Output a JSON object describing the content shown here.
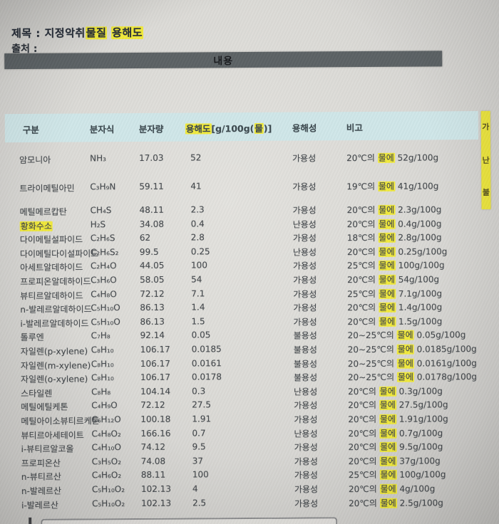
{
  "title": {
    "prefix": "제목 : 지정악취",
    "highlight_1": "물질",
    "highlight_2": "용해도"
  },
  "source": {
    "label": "출처 :"
  },
  "content_bar": {
    "label": "내용"
  },
  "table": {
    "headers": {
      "category": "구분",
      "formula": "분자식",
      "molecular_weight": "분자량",
      "solubility_highlight": "용해도",
      "solubility_open": "[g/100g(",
      "solubility_water": "물",
      "solubility_close": ")]",
      "solubility_class": "용해성",
      "remarks": "비고"
    },
    "water_word": "물에",
    "rows": [
      {
        "name": "암모니아",
        "name_highlighted": false,
        "formula": "NH₃",
        "mw": "17.03",
        "value": "52",
        "cls": "가용성",
        "remark_pre": "20℃의",
        "remark_post": "52g/100g"
      },
      {
        "name": "트라이메틸아민",
        "name_highlighted": false,
        "formula": "C₃H₉N",
        "mw": "59.11",
        "value": "41",
        "cls": "가용성",
        "remark_pre": "19℃의",
        "remark_post": "41g/100g"
      },
      {
        "name": "메틸메르캅탄",
        "name_highlighted": false,
        "formula": "CH₄S",
        "mw": "48.11",
        "value": "2.3",
        "cls": "가용성",
        "remark_pre": "20℃의",
        "remark_post": "2.3g/100g"
      },
      {
        "name": "황화수소",
        "name_highlighted": true,
        "formula": "H₂S",
        "mw": "34.08",
        "value": "0.4",
        "cls": "난용성",
        "remark_pre": "20℃의",
        "remark_post": "0.4g/100g"
      },
      {
        "name": "다이메틸설파이드",
        "name_highlighted": false,
        "formula": "C₂H₆S",
        "mw": "62",
        "value": "2.8",
        "cls": "가용성",
        "remark_pre": "18℃의",
        "remark_post": "2.8g/100g"
      },
      {
        "name": "다이메틸다이설파이드",
        "name_highlighted": false,
        "formula": "C₂H₆S₂",
        "mw": "99.5",
        "value": "0.25",
        "cls": "난용성",
        "remark_pre": "20℃의",
        "remark_post": "0.25g/100g"
      },
      {
        "name": "아세트알데하이드",
        "name_highlighted": false,
        "formula": "C₂H₄O",
        "mw": "44.05",
        "value": "100",
        "cls": "가용성",
        "remark_pre": "25℃의",
        "remark_post": "100g/100g"
      },
      {
        "name": "프로피온알데하이드",
        "name_highlighted": false,
        "formula": "C₃H₆O",
        "mw": "58.05",
        "value": "54",
        "cls": "가용성",
        "remark_pre": "20℃의",
        "remark_post": "54g/100g"
      },
      {
        "name": "뷰티르알데하이드",
        "name_highlighted": false,
        "formula": "C₄H₈O",
        "mw": "72.12",
        "value": "7.1",
        "cls": "가용성",
        "remark_pre": "25℃의",
        "remark_post": "7.1g/100g"
      },
      {
        "name": "n-발레르알데하이드",
        "name_highlighted": false,
        "formula": "C₅H₁₀O",
        "mw": "86.13",
        "value": "1.4",
        "cls": "가용성",
        "remark_pre": "20℃의",
        "remark_post": "1.4g/100g"
      },
      {
        "name": "i-발레르알데하이드",
        "name_highlighted": false,
        "formula": "C₅H₁₀O",
        "mw": "86.13",
        "value": "1.5",
        "cls": "가용성",
        "remark_pre": "20℃의",
        "remark_post": "1.5g/100g"
      },
      {
        "name": "톨루엔",
        "name_highlighted": false,
        "formula": "C₇H₈",
        "mw": "92.14",
        "value": "0.05",
        "cls": "불용성",
        "remark_pre": "20~25℃의",
        "remark_post": "0.05g/100g"
      },
      {
        "name": "자일렌(p-xylene)",
        "name_highlighted": false,
        "formula": "C₈H₁₀",
        "mw": "106.17",
        "value": "0.0185",
        "cls": "불용성",
        "remark_pre": "20~25℃의",
        "remark_post": "0.0185g/100g"
      },
      {
        "name": "자일렌(m-xylene)",
        "name_highlighted": false,
        "formula": "C₈H₁₀",
        "mw": "106.17",
        "value": "0.0161",
        "cls": "불용성",
        "remark_pre": "20~25℃의",
        "remark_post": "0.0161g/100g"
      },
      {
        "name": "자일렌(o-xylene)",
        "name_highlighted": false,
        "formula": "C₈H₁₀",
        "mw": "106.17",
        "value": "0.0178",
        "cls": "불용성",
        "remark_pre": "20~25℃의",
        "remark_post": "0.0178g/100g"
      },
      {
        "name": "스타일렌",
        "name_highlighted": false,
        "formula": "C₈H₈",
        "mw": "104.14",
        "value": "0.3",
        "cls": "난용성",
        "remark_pre": "20℃의",
        "remark_post": "0.3g/100g"
      },
      {
        "name": "메틸에틸케톤",
        "name_highlighted": false,
        "formula": "C₄H₉O",
        "mw": "72.12",
        "value": "27.5",
        "cls": "가용성",
        "remark_pre": "20℃의",
        "remark_post": "27.5g/100g"
      },
      {
        "name": "메틸아이소뷰티르케톤",
        "name_highlighted": false,
        "formula": "C₆H₁₂O",
        "mw": "100.18",
        "value": "1.91",
        "cls": "가용성",
        "remark_pre": "20℃의",
        "remark_post": "1.91g/100g"
      },
      {
        "name": "뷰티르아세테이트",
        "name_highlighted": false,
        "formula": "C₄H₈O₂",
        "mw": "166.16",
        "value": "0.7",
        "cls": "난용성",
        "remark_pre": "20℃의",
        "remark_post": "0.7g/100g"
      },
      {
        "name": "i-뷰티르알코올",
        "name_highlighted": false,
        "formula": "C₄H₁₀O",
        "mw": "74.12",
        "value": "9.5",
        "cls": "가용성",
        "remark_pre": "20℃의",
        "remark_post": "9.5g/100g"
      },
      {
        "name": "프로피온산",
        "name_highlighted": false,
        "formula": "C₃H₅O₂",
        "mw": "74.08",
        "value": "37",
        "cls": "가용성",
        "remark_pre": "20℃의",
        "remark_post": "37g/100g"
      },
      {
        "name": "n-뷰티르산",
        "name_highlighted": false,
        "formula": "C₄H₆O₂",
        "mw": "88.11",
        "value": "100",
        "cls": "가용성",
        "remark_pre": "25℃의",
        "remark_post": "100g/100g"
      },
      {
        "name": "n-발레르산",
        "name_highlighted": false,
        "formula": "C₅H₁₀O₂",
        "mw": "102.13",
        "value": "4",
        "cls": "가용성",
        "remark_pre": "20℃의",
        "remark_post": "4g/100g"
      },
      {
        "name": "i-발레르산",
        "name_highlighted": false,
        "formula": "C₅H₁₀O₂",
        "mw": "102.13",
        "value": "2.5",
        "cls": "가용성",
        "remark_pre": "20℃의",
        "remark_post": "2.5g/100g"
      }
    ]
  },
  "side_strip": {
    "labels": [
      "가",
      "난",
      "불"
    ]
  },
  "colors": {
    "highlight_yellow": "#f0e93a",
    "header_band_cyan": "#cfe6e8",
    "content_bar_gray": "#5a6063",
    "background_gray": "#dbdad6",
    "text_dark": "#42474b"
  }
}
